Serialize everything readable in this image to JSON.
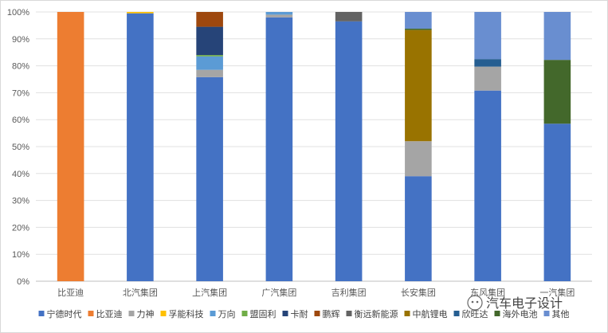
{
  "chart_data": {
    "type": "bar",
    "stacked": true,
    "normalized": true,
    "categories": [
      "比亚迪",
      "北汽集团",
      "上汽集团",
      "广汽集团",
      "吉利集团",
      "长安集团",
      "东风集团",
      "一汽集团"
    ],
    "ylim": [
      0,
      100
    ],
    "yticks": [
      "0%",
      "10%",
      "20%",
      "30%",
      "40%",
      "50%",
      "60%",
      "70%",
      "80%",
      "90%",
      "100%"
    ],
    "grid": true,
    "legend_position": "bottom",
    "series": [
      {
        "name": "宁德时代",
        "color": "#4472C4",
        "values": [
          0,
          99.5,
          75.8,
          98.0,
          96.5,
          39.0,
          70.8,
          58.5
        ]
      },
      {
        "name": "比亚迪",
        "color": "#ED7D31",
        "values": [
          100,
          0,
          0,
          0,
          0,
          0,
          0,
          0
        ]
      },
      {
        "name": "力神",
        "color": "#A5A5A5",
        "values": [
          0,
          0,
          2.7,
          1.0,
          0,
          13.0,
          8.9,
          0
        ]
      },
      {
        "name": "孚能科技",
        "color": "#FFC000",
        "values": [
          0,
          0.5,
          0,
          0,
          0,
          0,
          0,
          0
        ]
      },
      {
        "name": "万向",
        "color": "#5B9BD5",
        "values": [
          0,
          0,
          5.0,
          1.0,
          0,
          0,
          0,
          0
        ]
      },
      {
        "name": "盟固利",
        "color": "#70AD47",
        "values": [
          0,
          0,
          0.5,
          0,
          0,
          0,
          0,
          0
        ]
      },
      {
        "name": "卡耐",
        "color": "#264478",
        "values": [
          0,
          0,
          10.5,
          0,
          0,
          0,
          0,
          0
        ]
      },
      {
        "name": "鹏辉",
        "color": "#9E480E",
        "values": [
          0,
          0,
          5.5,
          0,
          0,
          0,
          0,
          0
        ]
      },
      {
        "name": "衡远新能源",
        "color": "#636363",
        "values": [
          0,
          0,
          0,
          0,
          3.5,
          0,
          0,
          0
        ]
      },
      {
        "name": "中航锂电",
        "color": "#997300",
        "values": [
          0,
          0,
          0,
          0,
          0,
          41.3,
          0,
          0
        ]
      },
      {
        "name": "欣旺达",
        "color": "#255E91",
        "values": [
          0,
          0,
          0,
          0,
          0,
          0,
          2.8,
          0
        ]
      },
      {
        "name": "海外电池",
        "color": "#43682B",
        "values": [
          0,
          0,
          0,
          0,
          0,
          0.5,
          0,
          23.7
        ]
      },
      {
        "name": "其他",
        "color": "#698ED0",
        "values": [
          0,
          0,
          0,
          0,
          0,
          6.2,
          17.5,
          17.8
        ]
      }
    ]
  },
  "watermark": {
    "text": "汽车电子设计"
  }
}
